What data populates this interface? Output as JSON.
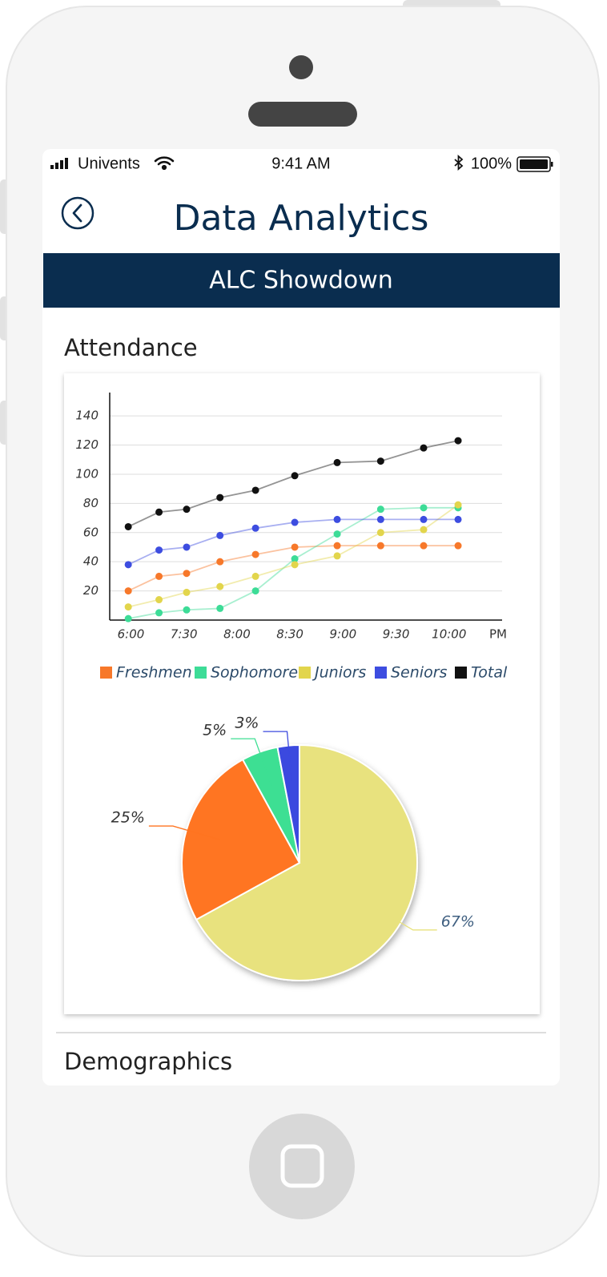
{
  "status_bar": {
    "carrier": "Univents",
    "time": "9:41 AM",
    "battery": "100%"
  },
  "header": {
    "title": "Data Analytics"
  },
  "banner": {
    "title": "ALC Showdown"
  },
  "sections": [
    {
      "title": "Attendance"
    },
    {
      "title": "Demographics"
    }
  ],
  "chart_data": [
    {
      "type": "line",
      "x_axis_label": "PM",
      "x": [
        -0.05,
        0.53,
        1.05,
        1.68,
        2.35,
        3.09,
        3.89,
        4.71,
        5.52,
        6.17
      ],
      "xlim": [
        -0.4,
        7
      ],
      "xticks": [
        {
          "value": 0,
          "label": "6:00"
        },
        {
          "value": 1,
          "label": "7:30"
        },
        {
          "value": 2,
          "label": "8:00"
        },
        {
          "value": 3,
          "label": "8:30"
        },
        {
          "value": 4,
          "label": "9:00"
        },
        {
          "value": 5,
          "label": "9:30"
        },
        {
          "value": 6,
          "label": "10:00"
        }
      ],
      "ylim": [
        0,
        156
      ],
      "yticks": [
        20,
        40,
        60,
        80,
        100,
        120,
        140
      ],
      "grid": true,
      "series": [
        {
          "name": "Freshmen",
          "color": "#f7782a",
          "values": [
            20,
            30,
            32,
            40,
            45,
            50,
            51,
            51,
            51,
            51
          ]
        },
        {
          "name": "Sophomore",
          "color": "#3ddc97",
          "values": [
            1,
            5,
            7,
            8,
            20,
            42,
            59,
            76,
            77,
            77
          ]
        },
        {
          "name": "Juniors",
          "color": "#e2d54c",
          "values": [
            9,
            14,
            19,
            23,
            30,
            38,
            44,
            60,
            62,
            79
          ]
        },
        {
          "name": "Seniors",
          "color": "#3d4de0",
          "values": [
            38,
            48,
            50,
            58,
            63,
            67,
            69,
            69,
            69,
            69
          ]
        },
        {
          "name": "Total",
          "color": "#111111",
          "values": [
            64,
            74,
            76,
            84,
            89,
            99,
            108,
            109,
            118,
            123
          ]
        }
      ]
    },
    {
      "type": "pie",
      "values": [
        67,
        25,
        5,
        3
      ],
      "value_labels": [
        "67%",
        "25%",
        "5%",
        "3%"
      ],
      "colors": [
        "#e8e27e",
        "#ff7420",
        "#3ddf93",
        "#3b49df"
      ]
    }
  ]
}
